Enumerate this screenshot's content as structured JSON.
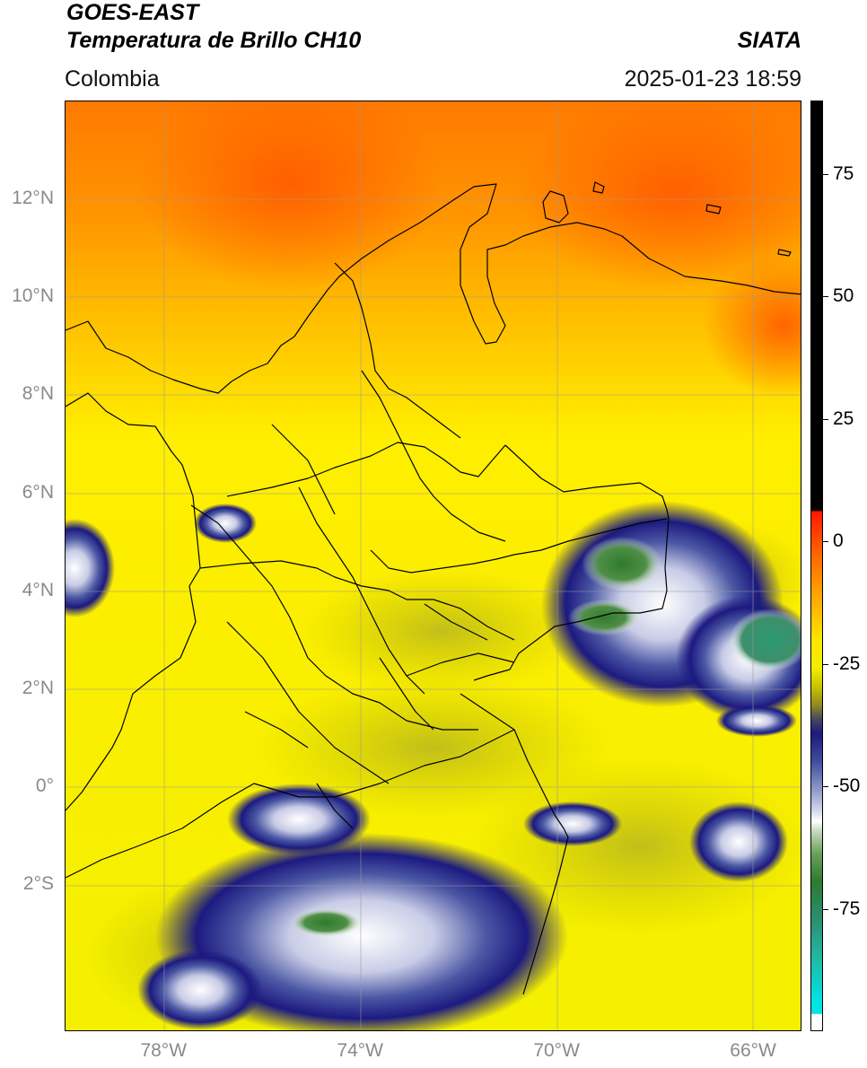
{
  "header": {
    "title_line1": "GOES-EAST",
    "title_line2": "Temperatura de Brillo CH10",
    "region": "Colombia",
    "source": "SIATA",
    "timestamp": "2025-01-23 18:59"
  },
  "map": {
    "lon_range": [
      -80,
      -65
    ],
    "lat_range": [
      -5,
      14
    ],
    "x_ticks": [
      {
        "lon": -78,
        "label": "78°W"
      },
      {
        "lon": -74,
        "label": "74°W"
      },
      {
        "lon": -70,
        "label": "70°W"
      },
      {
        "lon": -66,
        "label": "66°W"
      }
    ],
    "y_ticks": [
      {
        "lat": 12,
        "label": "12°N"
      },
      {
        "lat": 10,
        "label": "10°N"
      },
      {
        "lat": 8,
        "label": "8°N"
      },
      {
        "lat": 6,
        "label": "6°N"
      },
      {
        "lat": 4,
        "label": "4°N"
      },
      {
        "lat": 2,
        "label": "2°N"
      },
      {
        "lat": 0,
        "label": "0°"
      },
      {
        "lat": -2,
        "label": "2°S"
      }
    ],
    "gridlines": true
  },
  "colorbar": {
    "range": [
      -100,
      90
    ],
    "ticks": [
      {
        "value": 75,
        "label": "75"
      },
      {
        "value": 50,
        "label": "50"
      },
      {
        "value": 25,
        "label": "25"
      },
      {
        "value": 0,
        "label": "0"
      },
      {
        "value": -25,
        "label": "-25"
      },
      {
        "value": -50,
        "label": "-50"
      },
      {
        "value": -75,
        "label": "-75"
      }
    ]
  },
  "colors": {
    "warm": "#ff6a00",
    "mid": "#ffe600",
    "cold_blue": "#1c1a80",
    "cold_green": "#2f7a2f"
  }
}
